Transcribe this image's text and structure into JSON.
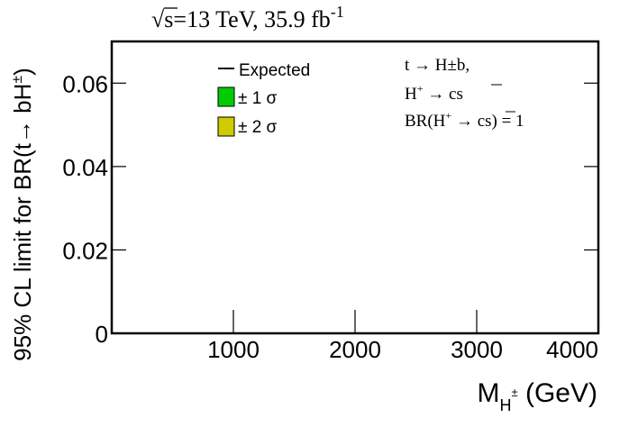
{
  "chart_data": {
    "type": "line",
    "title": {
      "sqrt_symbol": "√",
      "energy": "s=13 TeV, 35.9 fb",
      "lumi_exp": "-1"
    },
    "xlabel": {
      "main": "M",
      "sub": "H",
      "sup": "±",
      "unit": " (GeV)"
    },
    "ylabel": {
      "main": "95% CL limit for BR(t→ bH",
      "sup": "±",
      "close": ")"
    },
    "xlim": [
      0,
      4000
    ],
    "ylim": [
      0,
      0.07
    ],
    "x_ticks": [
      {
        "value": 1000,
        "label": "1000"
      },
      {
        "value": 2000,
        "label": "2000"
      },
      {
        "value": 3000,
        "label": "3000"
      },
      {
        "value": 4000,
        "label": "4000"
      }
    ],
    "y_ticks": [
      {
        "value": 0,
        "label": "0"
      },
      {
        "value": 0.02,
        "label": "0.02"
      },
      {
        "value": 0.04,
        "label": "0.04"
      },
      {
        "value": 0.06,
        "label": "0.06"
      }
    ],
    "legend": {
      "placement": "top-left",
      "entries": [
        {
          "label": "Expected",
          "style": "line",
          "color": "#000000"
        },
        {
          "label": "± 1 σ",
          "style": "box",
          "color": "#00cc00"
        },
        {
          "label": "± 2 σ",
          "style": "box",
          "color": "#cccc00"
        }
      ]
    },
    "annotations": {
      "line1": "t → H±b,",
      "line2_main": "H",
      "line2_sup": "+",
      "line2_rest": " → cs",
      "line3_main": "BR(H",
      "line3_sup": "+",
      "line3_rest": " → cs) = 1"
    },
    "grid": false,
    "series": []
  }
}
